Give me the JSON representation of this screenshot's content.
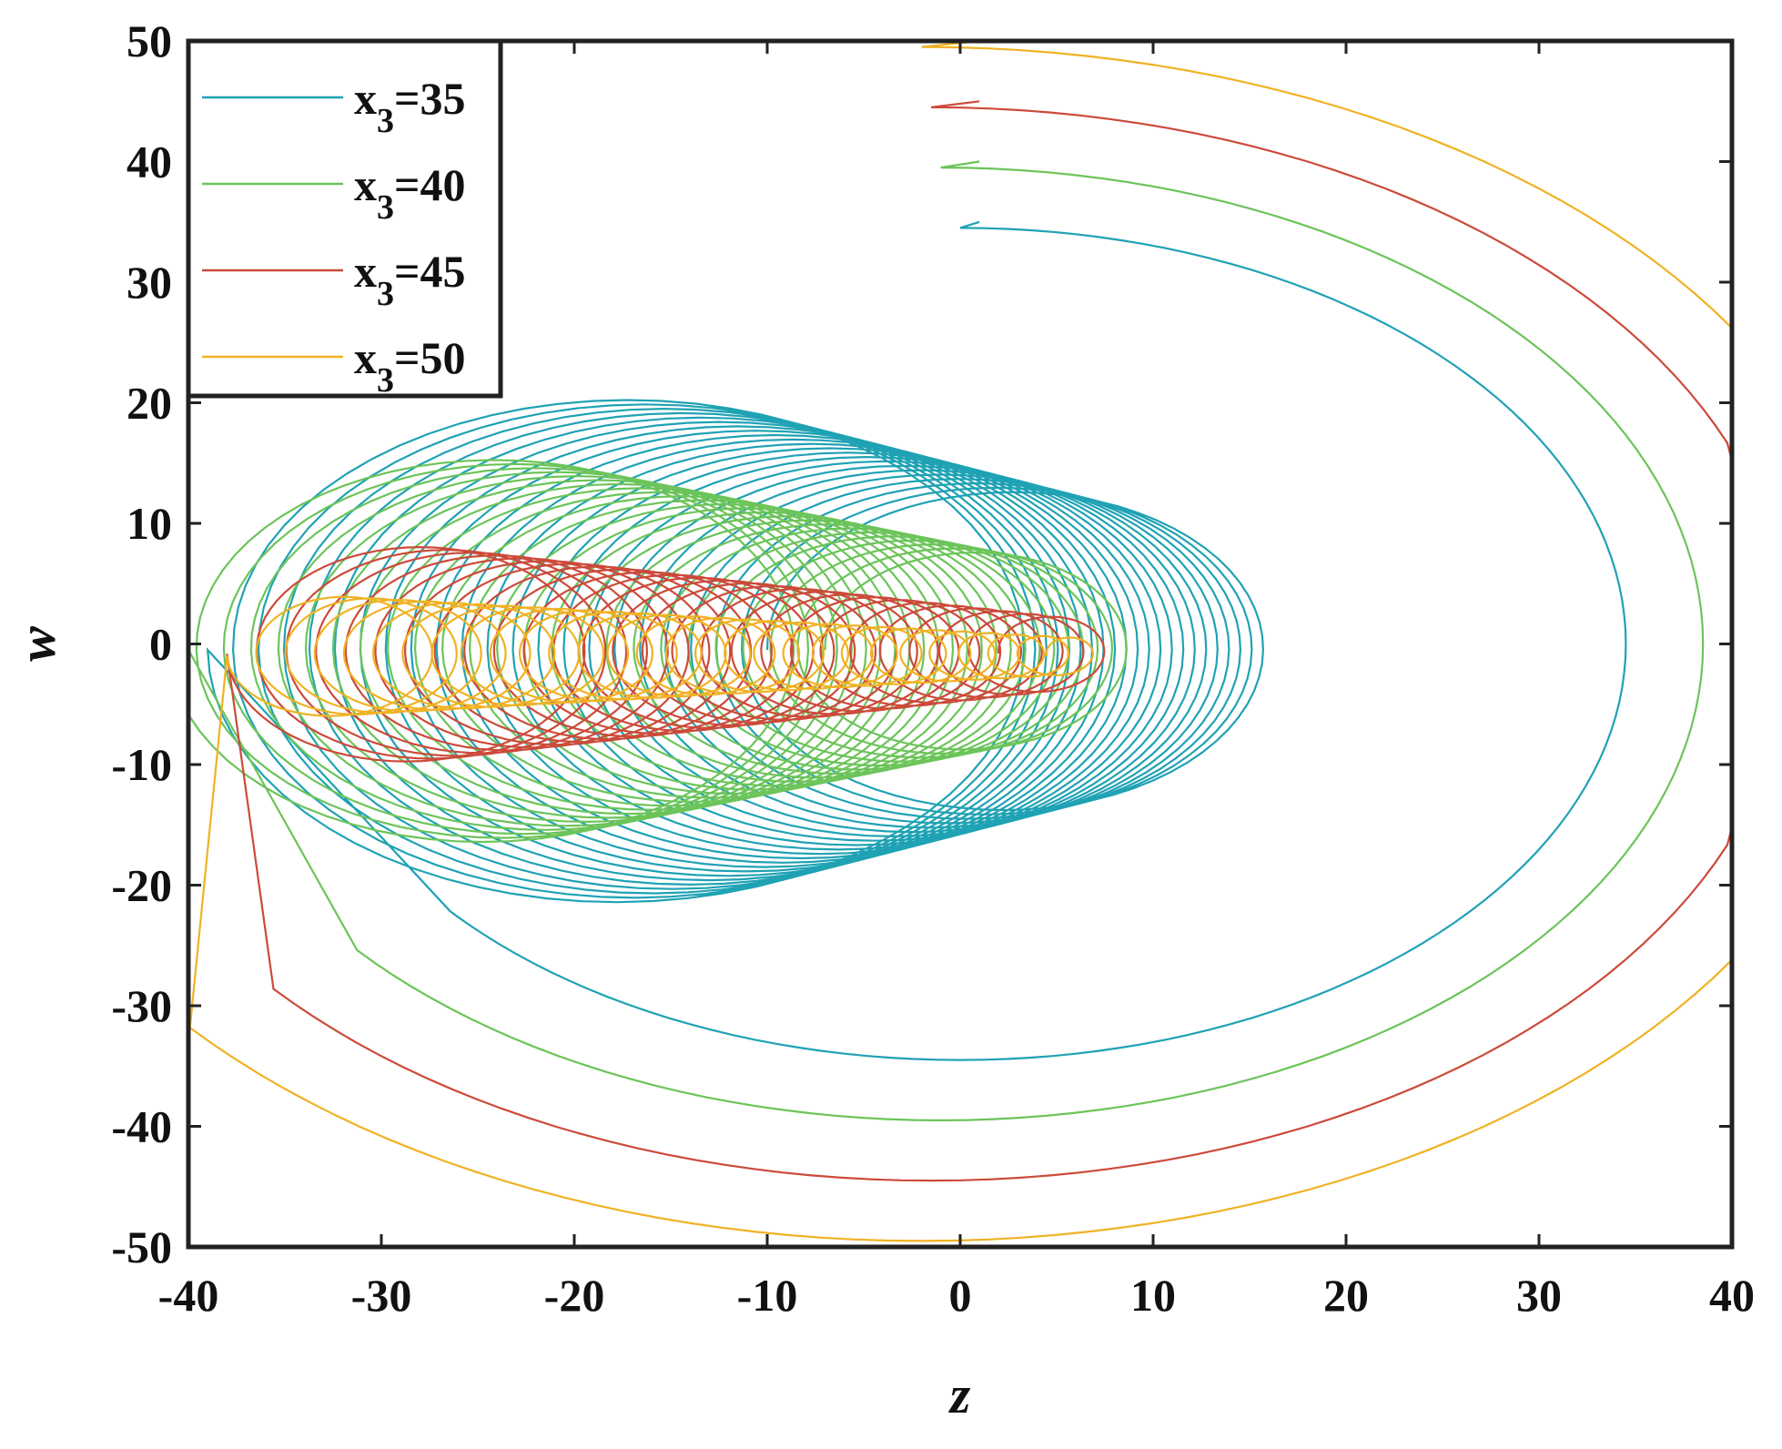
{
  "chart_data": {
    "type": "line",
    "title": "",
    "xlabel": "z",
    "ylabel": "w",
    "xlim": [
      -40,
      40
    ],
    "ylim": [
      -50,
      50
    ],
    "xticks": [
      -40,
      -30,
      -20,
      -10,
      0,
      10,
      20,
      30,
      40
    ],
    "yticks": [
      50,
      40,
      30,
      20,
      10,
      0,
      -10,
      -20,
      -30,
      -40,
      -50
    ],
    "grid": false,
    "legend_position": "top-left",
    "series": [
      {
        "name_main": "x",
        "name_sub": "3",
        "name_tail": "=35",
        "color": "#1fa2b4",
        "trajectory": {
          "start": [
            1,
            35
          ],
          "outer_radius": 34.5,
          "outer_center": [
            0,
            0
          ],
          "loop_center_w": -0.5,
          "loop_z_from": 3,
          "loop_z_to": -18,
          "loop_r_from": 13,
          "loop_r_to": 21,
          "loops": 22
        }
      },
      {
        "name_main": "x",
        "name_sub": "3",
        "name_tail": "=40",
        "color": "#6cc45a",
        "trajectory": {
          "start": [
            1,
            40
          ],
          "outer_radius": 39.5,
          "outer_center": [
            -1,
            0
          ],
          "loop_center_w": -0.5,
          "loop_z_from": 1,
          "loop_z_to": -25,
          "loop_r_from": 8,
          "loop_r_to": 16,
          "loops": 24
        }
      },
      {
        "name_main": "x",
        "name_sub": "3",
        "name_tail": "=45",
        "color": "#cc4a3a",
        "trajectory": {
          "start": [
            1,
            45
          ],
          "outer_radius": 44.5,
          "outer_center": [
            -1.5,
            0
          ],
          "loop_center_w": -0.8,
          "loop_z_from": 5,
          "loop_z_to": -29,
          "loop_r_from": 3,
          "loop_r_to": 9,
          "loops": 26
        }
      },
      {
        "name_main": "x",
        "name_sub": "3",
        "name_tail": "=50",
        "color": "#f0b224",
        "trajectory": {
          "start": [
            1,
            50
          ],
          "outer_radius": 49.5,
          "outer_center": [
            -2,
            0
          ],
          "loop_center_w": -1,
          "loop_z_from": 6,
          "loop_z_to": -33,
          "loop_r_from": 1.5,
          "loop_r_to": 5,
          "loops": 28
        }
      }
    ]
  }
}
